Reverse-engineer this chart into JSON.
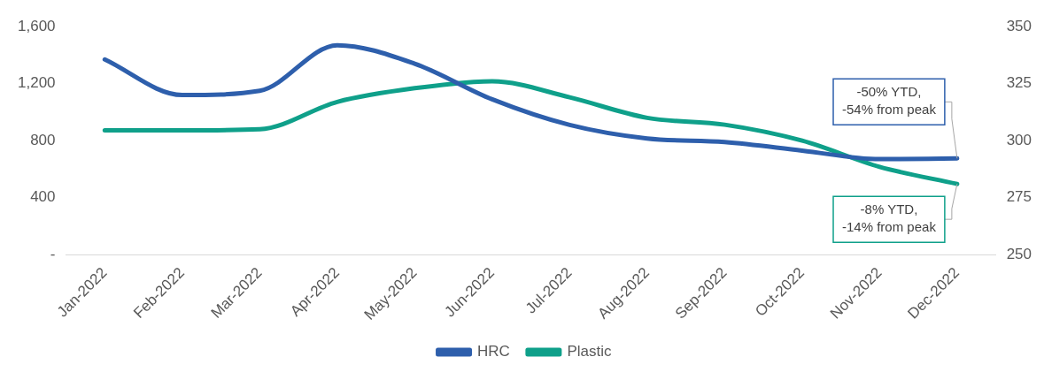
{
  "chart_data": {
    "type": "line",
    "categories": [
      "Jan-2022",
      "Feb-2022",
      "Mar-2022",
      "Apr-2022",
      "May-2022",
      "Jun-2022",
      "Jul-2022",
      "Aug-2022",
      "Sep-2022",
      "Oct-2022",
      "Nov-2022",
      "Dec-2022"
    ],
    "series": [
      {
        "name": "HRC",
        "color": "#2e5fac",
        "values": [
          1370,
          1120,
          1150,
          1470,
          1340,
          1090,
          910,
          815,
          790,
          730,
          670,
          675
        ]
      },
      {
        "name": "Plastic",
        "color": "#0fa08a",
        "axis": "y2",
        "values": [
          304.5,
          304.5,
          305,
          317,
          323,
          326,
          319,
          310,
          307,
          300,
          288.5,
          281
        ]
      }
    ],
    "ylim": [
      0,
      1600
    ],
    "yticks": [
      {
        "value": 0,
        "label": "-"
      },
      {
        "value": 400,
        "label": "400"
      },
      {
        "value": 800,
        "label": "800"
      },
      {
        "value": 1200,
        "label": "1,200"
      },
      {
        "value": 1600,
        "label": "1,600"
      }
    ],
    "y2lim": [
      250,
      350
    ],
    "y2ticks": [
      250,
      275,
      300,
      325,
      350
    ],
    "annotations": [
      {
        "text": "-50% YTD,\n-54% from peak",
        "x": "Dec-2022",
        "y": 675
      },
      {
        "text": "-8% YTD,\n-14% from peak",
        "x": "Dec-2022",
        "y": 496
      }
    ],
    "grid": false,
    "legend": "bottom",
    "marker": "none",
    "line_style": "solid"
  }
}
